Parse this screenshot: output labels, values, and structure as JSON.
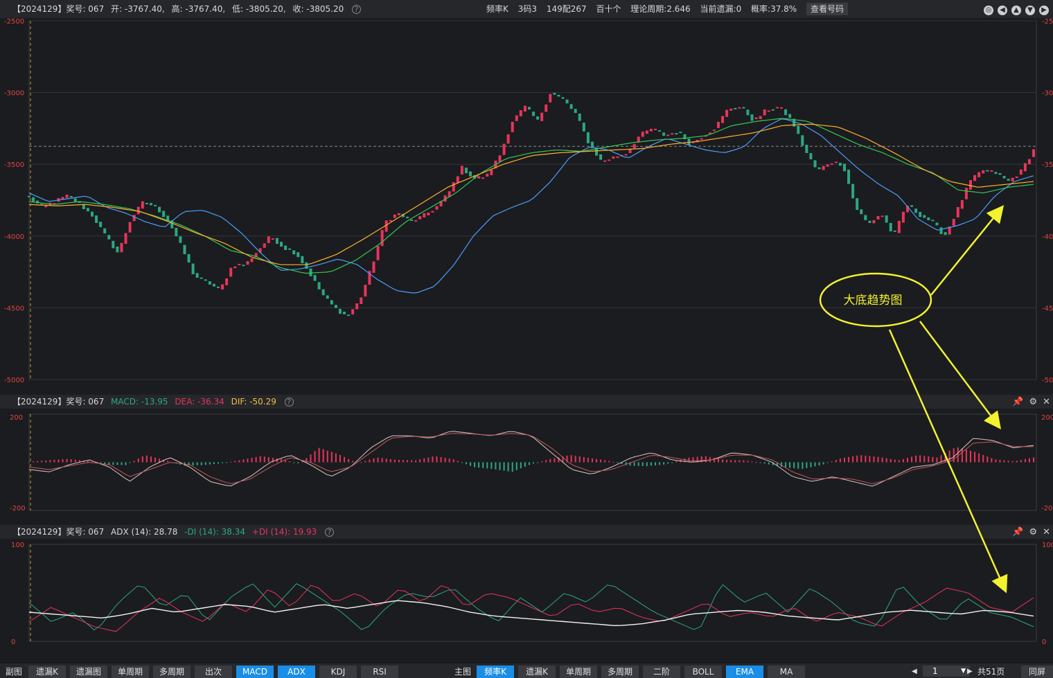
{
  "header": {
    "issue": "【2024129】奖号: 067",
    "open": "开: -3767.40,",
    "high": "高: -3767.40,",
    "low": "低: -3805.20,",
    "close": "收: -3805.20",
    "chart_type": "频率K",
    "rule": "3码3",
    "combo": "149配267",
    "group": "百十个",
    "theory_period": "理论周期:2.646",
    "current_miss": "当前遗漏:0",
    "probability": "概率:37.8%",
    "check_button": "查看号码"
  },
  "colors": {
    "up": "#e8345a",
    "down": "#2aa883",
    "ema_fast": "#4a9eff",
    "ema_mid": "#34c759",
    "ema_slow": "#ffb02e",
    "axis": "#e04444",
    "annotation": "#f2f230",
    "tab_active": "#1a8ee6"
  },
  "chart_data": [
    {
      "type": "candlestick",
      "yticks": [
        "-2500",
        "-3000",
        "-3500",
        "-4000",
        "-4500",
        "-5000"
      ],
      "ylim": [
        -5000,
        -2500
      ],
      "current_level": -3375,
      "close_path": [
        -3730,
        -3800,
        -3760,
        -3720,
        -3780,
        -3860,
        -4000,
        -4120,
        -3880,
        -3760,
        -3800,
        -3900,
        -4080,
        -4280,
        -4320,
        -4380,
        -4200,
        -4200,
        -4100,
        -4000,
        -4080,
        -4120,
        -4250,
        -4400,
        -4500,
        -4560,
        -4450,
        -4200,
        -3900,
        -3840,
        -3900,
        -3860,
        -3800,
        -3700,
        -3520,
        -3600,
        -3580,
        -3440,
        -3200,
        -3100,
        -3200,
        -3000,
        -3050,
        -3150,
        -3350,
        -3480,
        -3450,
        -3420,
        -3300,
        -3250,
        -3300,
        -3270,
        -3360,
        -3300,
        -3240,
        -3110,
        -3100,
        -3200,
        -3120,
        -3100,
        -3200,
        -3400,
        -3550,
        -3480,
        -3500,
        -3800,
        -3920,
        -3840,
        -4000,
        -3780,
        -3850,
        -3900,
        -4000,
        -3820,
        -3620,
        -3540,
        -3560,
        -3620,
        -3550,
        -3400
      ],
      "series": [
        {
          "name": "EMA-fast",
          "values": [
            -3700,
            -3760,
            -3740,
            -3720,
            -3800,
            -3840,
            -3900,
            -3940,
            -3830,
            -3820,
            -3870,
            -3980,
            -4120,
            -4240,
            -4230,
            -4200,
            -4160,
            -4200,
            -4300,
            -4380,
            -4400,
            -4350,
            -4200,
            -4000,
            -3860,
            -3800,
            -3750,
            -3620,
            -3450,
            -3380,
            -3400,
            -3460,
            -3380,
            -3320,
            -3360,
            -3400,
            -3420,
            -3380,
            -3250,
            -3180,
            -3220,
            -3300,
            -3420,
            -3540,
            -3640,
            -3720,
            -3880,
            -3960,
            -3930,
            -3880,
            -3720,
            -3620,
            -3580
          ]
        },
        {
          "name": "EMA-mid",
          "values": [
            -3760,
            -3780,
            -3760,
            -3780,
            -3810,
            -3860,
            -3920,
            -4000,
            -4100,
            -4140,
            -4220,
            -4260,
            -4250,
            -4170,
            -4050,
            -3900,
            -3800,
            -3700,
            -3560,
            -3460,
            -3420,
            -3400,
            -3410,
            -3380,
            -3350,
            -3330,
            -3320,
            -3300,
            -3230,
            -3200,
            -3180,
            -3200,
            -3280,
            -3360,
            -3420,
            -3500,
            -3560,
            -3680,
            -3700,
            -3660,
            -3640
          ]
        },
        {
          "name": "EMA-slow",
          "values": [
            -3780,
            -3790,
            -3780,
            -3800,
            -3830,
            -3900,
            -3980,
            -4050,
            -4150,
            -4200,
            -4200,
            -4130,
            -4020,
            -3900,
            -3780,
            -3660,
            -3580,
            -3500,
            -3440,
            -3420,
            -3410,
            -3400,
            -3390,
            -3360,
            -3340,
            -3310,
            -3280,
            -3230,
            -3220,
            -3240,
            -3320,
            -3420,
            -3530,
            -3620,
            -3660,
            -3640,
            -3620
          ]
        }
      ]
    },
    {
      "type": "bar",
      "name": "MACD",
      "yticks": [
        "200",
        "-200"
      ],
      "ylim": [
        -200,
        200
      ],
      "hist": [
        3,
        8,
        14,
        6,
        -10,
        -12,
        30,
        10,
        -14,
        -12,
        -4,
        10,
        26,
        14,
        -6,
        60,
        34,
        -4,
        20,
        10,
        8,
        26,
        12,
        -20,
        -28,
        -40,
        -8,
        14,
        30,
        18,
        6,
        -14,
        -16,
        -8,
        18,
        26,
        10,
        8,
        -4,
        -20,
        -28,
        -12,
        16,
        30,
        22,
        8,
        30,
        20,
        64,
        42,
        12,
        4,
        20
      ],
      "series": [
        {
          "name": "DIF",
          "values": [
            -30,
            -40,
            -10,
            10,
            -20,
            -80,
            -20,
            20,
            -20,
            -80,
            -100,
            -60,
            0,
            30,
            -10,
            -60,
            -20,
            60,
            110,
            110,
            100,
            130,
            120,
            110,
            130,
            110,
            40,
            -30,
            -50,
            -20,
            20,
            40,
            10,
            0,
            10,
            40,
            30,
            0,
            -60,
            -80,
            -60,
            -80,
            -100,
            -60,
            -20,
            -10,
            20,
            100,
            90,
            60,
            70
          ]
        },
        {
          "name": "DEA",
          "values": [
            -20,
            -30,
            -15,
            0,
            -10,
            -60,
            -30,
            0,
            -10,
            -60,
            -90,
            -70,
            -20,
            20,
            0,
            -40,
            -20,
            40,
            100,
            108,
            105,
            120,
            118,
            112,
            120,
            112,
            60,
            -10,
            -40,
            -30,
            0,
            30,
            20,
            5,
            10,
            30,
            30,
            10,
            -40,
            -70,
            -65,
            -70,
            -90,
            -65,
            -30,
            -15,
            10,
            80,
            85,
            65,
            65
          ]
        }
      ]
    },
    {
      "type": "line",
      "name": "ADX",
      "yticks": [
        "100",
        "0"
      ],
      "ylim": [
        0,
        100
      ],
      "series": [
        {
          "name": "-DI",
          "values": [
            40,
            20,
            30,
            10,
            40,
            60,
            35,
            50,
            20,
            45,
            60,
            35,
            60,
            45,
            30,
            10,
            35,
            50,
            45,
            55,
            35,
            20,
            45,
            30,
            50,
            40,
            60,
            45,
            30,
            20,
            10,
            60,
            40,
            50,
            30,
            55,
            40,
            20,
            15,
            60,
            35,
            20,
            45,
            30,
            25,
            15
          ]
        },
        {
          "name": "+DI",
          "values": [
            20,
            35,
            25,
            15,
            10,
            30,
            45,
            30,
            20,
            40,
            30,
            55,
            35,
            60,
            40,
            50,
            35,
            55,
            40,
            60,
            35,
            50,
            45,
            35,
            25,
            40,
            30,
            35,
            25,
            20,
            30,
            40,
            25,
            30,
            25,
            35,
            20,
            30,
            25,
            15,
            30,
            40,
            55,
            50,
            35,
            30,
            45
          ]
        },
        {
          "name": "ADX",
          "values": [
            30,
            28,
            26,
            24,
            28,
            34,
            30,
            34,
            38,
            36,
            30,
            34,
            38,
            34,
            38,
            42,
            40,
            36,
            30,
            26,
            24,
            22,
            20,
            18,
            16,
            18,
            22,
            28,
            30,
            32,
            30,
            26,
            24,
            22,
            26,
            30,
            32,
            30,
            28,
            32,
            30,
            26
          ]
        }
      ]
    }
  ],
  "macd_panel": {
    "issue": "【2024129】奖号: 067",
    "macd": "MACD: -13.95",
    "dea": "DEA: -36.34",
    "dif": "DIF: -50.29"
  },
  "adx_panel": {
    "issue": "【2024129】奖号: 067",
    "adx": "ADX (14): 28.78",
    "minus_di": "-DI (14): 38.34",
    "plus_di": "+DI (14): 19.93"
  },
  "annotation": {
    "text": "大底趋势图"
  },
  "bottom_left": {
    "label": "副图",
    "tabs": [
      {
        "label": "遗漏K",
        "active": false
      },
      {
        "label": "遗漏图",
        "active": false
      },
      {
        "label": "单周期",
        "active": false
      },
      {
        "label": "多周期",
        "active": false
      },
      {
        "label": "出次",
        "active": false
      },
      {
        "label": "MACD",
        "active": true
      },
      {
        "label": "ADX",
        "active": true
      },
      {
        "label": "KDJ",
        "active": false
      },
      {
        "label": "RSI",
        "active": false
      }
    ]
  },
  "bottom_right": {
    "label": "主图",
    "tabs": [
      {
        "label": "频率K",
        "active": true
      },
      {
        "label": "遗漏K",
        "active": false
      },
      {
        "label": "单周期",
        "active": false
      },
      {
        "label": "多周期",
        "active": false
      },
      {
        "label": "二阶",
        "active": false
      },
      {
        "label": "BOLL",
        "active": false
      },
      {
        "label": "EMA",
        "active": true
      },
      {
        "label": "MA",
        "active": false
      }
    ]
  },
  "pager": {
    "page": "1",
    "total": "共51页",
    "sync": "同屏"
  }
}
